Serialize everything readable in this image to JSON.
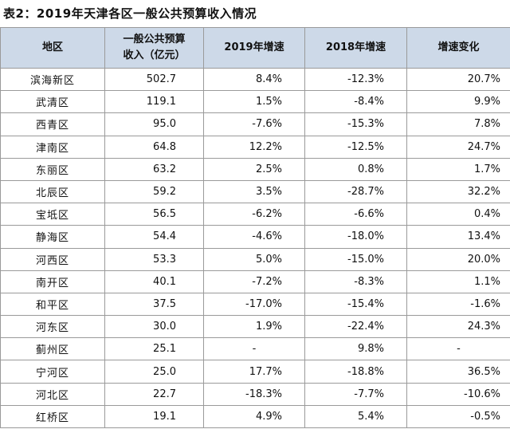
{
  "title": "表2：2019年天津各区一般公共预算收入情况",
  "table": {
    "header": [
      "地区",
      "一般公共预算\n收入（亿元）",
      "2019年增速",
      "2018年增速",
      "增速变化"
    ],
    "rows": [
      [
        "滨海新区",
        "502.7",
        "8.4%",
        "-12.3%",
        "20.7%"
      ],
      [
        "武清区",
        "119.1",
        "1.5%",
        "-8.4%",
        "9.9%"
      ],
      [
        "西青区",
        "95.0",
        "-7.6%",
        "-15.3%",
        "7.8%"
      ],
      [
        "津南区",
        "64.8",
        "12.2%",
        "-12.5%",
        "24.7%"
      ],
      [
        "东丽区",
        "63.2",
        "2.5%",
        "0.8%",
        "1.7%"
      ],
      [
        "北辰区",
        "59.2",
        "3.5%",
        "-28.7%",
        "32.2%"
      ],
      [
        "宝坻区",
        "56.5",
        "-6.2%",
        "-6.6%",
        "0.4%"
      ],
      [
        "静海区",
        "54.4",
        "-4.6%",
        "-18.0%",
        "13.4%"
      ],
      [
        "河西区",
        "53.3",
        "5.0%",
        "-15.0%",
        "20.0%"
      ],
      [
        "南开区",
        "40.1",
        "-7.2%",
        "-8.3%",
        "1.1%"
      ],
      [
        "和平区",
        "37.5",
        "-17.0%",
        "-15.4%",
        "-1.6%"
      ],
      [
        "河东区",
        "30.0",
        "1.9%",
        "-22.4%",
        "24.3%"
      ],
      [
        "蓟州区",
        "25.1",
        "-",
        "9.8%",
        "-"
      ],
      [
        "宁河区",
        "25.0",
        "17.7%",
        "-18.8%",
        "36.5%"
      ],
      [
        "河北区",
        "22.7",
        "-18.3%",
        "-7.7%",
        "-10.6%"
      ],
      [
        "红桥区",
        "19.1",
        "4.9%",
        "5.4%",
        "-0.5%"
      ]
    ]
  }
}
